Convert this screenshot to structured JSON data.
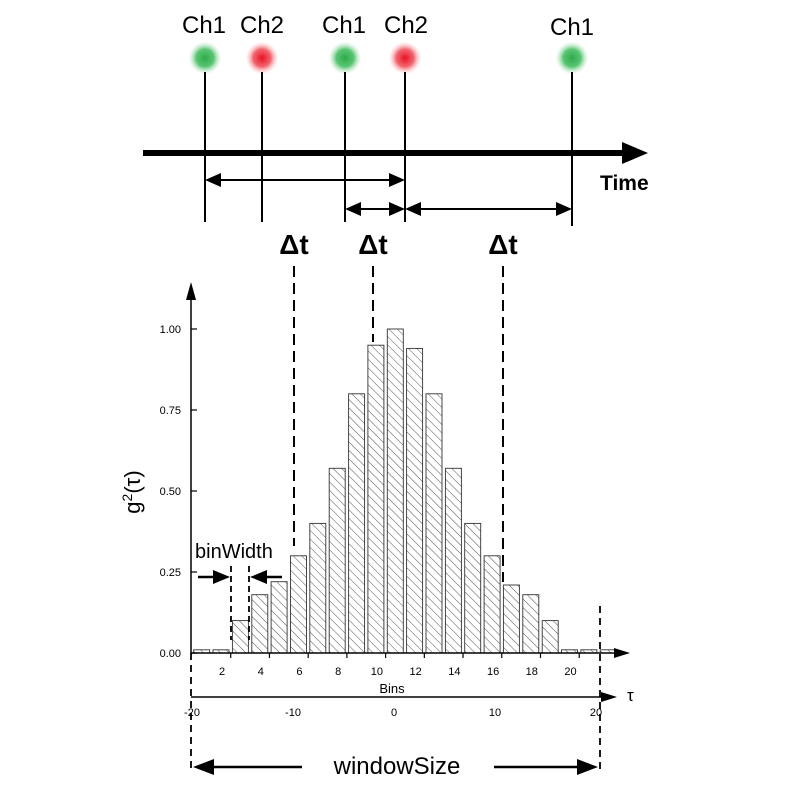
{
  "timeline": {
    "axis_label": "Time",
    "photons": [
      {
        "label": "Ch1",
        "color": "#2eaa4a"
      },
      {
        "label": "Ch2",
        "color": "#ee3340"
      },
      {
        "label": "Ch1",
        "color": "#2eaa4a"
      },
      {
        "label": "Ch2",
        "color": "#ee3340"
      },
      {
        "label": "Ch1",
        "color": "#2eaa4a"
      }
    ],
    "delta_labels": [
      "Δt",
      "Δt",
      "Δt"
    ]
  },
  "chart_data": {
    "type": "bar",
    "ylabel_base": "g",
    "ylabel_sup": "2",
    "ylabel_arg": "(τ)",
    "xlabel": "Bins",
    "tau_label": "τ",
    "y_ticks": [
      "0.00",
      "0.25",
      "0.50",
      "0.75",
      "1.00"
    ],
    "ylim": [
      0,
      1.1
    ],
    "bin_ticks": [
      "2",
      "4",
      "6",
      "8",
      "10",
      "12",
      "14",
      "16",
      "18",
      "20"
    ],
    "tau_ticks": [
      "-20",
      "-10",
      "0",
      "10",
      "20"
    ],
    "bins": [
      1,
      2,
      3,
      4,
      5,
      6,
      7,
      8,
      9,
      10,
      11,
      12,
      13,
      14,
      15,
      16,
      17,
      18,
      19,
      20,
      21,
      22
    ],
    "values": [
      0.01,
      0.01,
      0.1,
      0.18,
      0.22,
      0.3,
      0.4,
      0.57,
      0.8,
      0.95,
      1.0,
      0.94,
      0.8,
      0.57,
      0.4,
      0.3,
      0.21,
      0.18,
      0.1,
      0.01,
      0.01,
      0.01
    ],
    "grid": false
  },
  "annotations": {
    "bin_width": "binWidth",
    "window_size": "windowSize"
  },
  "colors": {
    "ink": "#000000",
    "ch1": "#2eaa4a",
    "ch2": "#ee3340"
  }
}
